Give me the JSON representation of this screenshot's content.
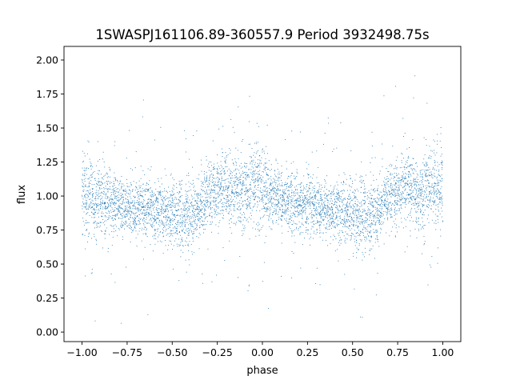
{
  "chart_data": {
    "type": "scatter",
    "title": "1SWASPJ161106.89-360557.9 Period 3932498.75s",
    "xlabel": "phase",
    "ylabel": "flux",
    "xlim": [
      -1.1,
      1.1
    ],
    "ylim": [
      -0.07,
      2.1
    ],
    "xticks": [
      {
        "value": -1.0,
        "label": "−1.00"
      },
      {
        "value": -0.75,
        "label": "−0.75"
      },
      {
        "value": -0.5,
        "label": "−0.50"
      },
      {
        "value": -0.25,
        "label": "−0.25"
      },
      {
        "value": 0.0,
        "label": "0.00"
      },
      {
        "value": 0.25,
        "label": "0.25"
      },
      {
        "value": 0.5,
        "label": "0.50"
      },
      {
        "value": 0.75,
        "label": "0.75"
      },
      {
        "value": 1.0,
        "label": "1.00"
      }
    ],
    "yticks": [
      {
        "value": 0.0,
        "label": "0.00"
      },
      {
        "value": 0.25,
        "label": "0.25"
      },
      {
        "value": 0.5,
        "label": "0.50"
      },
      {
        "value": 0.75,
        "label": "0.75"
      },
      {
        "value": 1.0,
        "label": "1.00"
      },
      {
        "value": 1.25,
        "label": "1.25"
      },
      {
        "value": 1.5,
        "label": "1.50"
      },
      {
        "value": 1.75,
        "label": "1.75"
      },
      {
        "value": 2.0,
        "label": "2.00"
      }
    ],
    "grid": false,
    "marker_color": "#1f77b4",
    "series": [
      {
        "x": [
          -0.99,
          -0.97,
          -0.95,
          -0.93,
          -0.91,
          -0.89,
          -0.87,
          -0.85,
          -0.83,
          -0.81,
          -0.79,
          -0.77,
          -0.75,
          -0.73,
          -0.71,
          -0.69,
          -0.67,
          -0.65,
          -0.63,
          -0.61,
          -0.59,
          -0.57,
          -0.55,
          -0.53,
          -0.51,
          -0.49,
          -0.47,
          -0.45,
          -0.43,
          -0.41,
          -0.39,
          -0.37,
          -0.35,
          -0.33,
          -0.31,
          -0.29,
          -0.27,
          -0.25,
          -0.23,
          -0.21,
          -0.19,
          -0.17,
          -0.15,
          -0.13,
          -0.11,
          -0.09,
          -0.07,
          -0.05,
          -0.03,
          -0.01,
          0.01,
          0.03,
          0.05,
          0.07,
          0.09,
          0.11,
          0.13,
          0.15,
          0.17,
          0.19,
          0.21,
          0.23,
          0.25,
          0.27,
          0.29,
          0.31,
          0.33,
          0.35,
          0.37,
          0.39,
          0.41,
          0.43,
          0.45,
          0.47,
          0.49,
          0.51,
          0.53,
          0.55,
          0.57,
          0.59,
          0.61,
          0.63,
          0.65,
          0.67,
          0.69,
          0.71,
          0.73,
          0.75,
          0.77,
          0.79,
          0.81,
          0.83,
          0.85,
          0.87,
          0.89,
          0.91,
          0.93,
          0.95,
          0.97,
          0.99
        ],
        "y": [
          1.06,
          1.02,
          1.0,
          0.97,
          0.98,
          0.96,
          0.95,
          0.95,
          0.93,
          0.95,
          0.92,
          0.93,
          0.9,
          0.92,
          0.9,
          0.92,
          0.91,
          0.9,
          0.91,
          0.9,
          0.89,
          0.9,
          0.88,
          0.88,
          0.87,
          0.88,
          0.86,
          0.86,
          0.85,
          0.86,
          0.88,
          0.9,
          0.92,
          0.95,
          0.98,
          1.0,
          1.03,
          1.04,
          1.05,
          1.06,
          1.05,
          1.04,
          1.02,
          1.01,
          1.04,
          1.05,
          1.06,
          1.07,
          1.06,
          1.06,
          1.05,
          1.03,
          1.01,
          1.0,
          0.98,
          0.97,
          0.96,
          0.96,
          0.95,
          0.94,
          0.94,
          0.93,
          0.93,
          0.92,
          0.91,
          0.92,
          0.9,
          0.91,
          0.9,
          0.9,
          0.89,
          0.9,
          0.88,
          0.88,
          0.87,
          0.87,
          0.86,
          0.86,
          0.85,
          0.86,
          0.88,
          0.9,
          0.92,
          0.95,
          0.98,
          1.0,
          1.02,
          1.04,
          1.05,
          1.06,
          1.05,
          1.04,
          1.02,
          1.01,
          1.03,
          1.05,
          1.06,
          1.07,
          1.06,
          1.06
        ],
        "spread": [
          0.3,
          0.25,
          0.22,
          0.22,
          0.2,
          0.2,
          0.22,
          0.2,
          0.22,
          0.2,
          0.18,
          0.2,
          0.18,
          0.2,
          0.18,
          0.18,
          0.2,
          0.2,
          0.18,
          0.18,
          0.2,
          0.22,
          0.2,
          0.2,
          0.22,
          0.22,
          0.24,
          0.26,
          0.26,
          0.24,
          0.22,
          0.2,
          0.2,
          0.2,
          0.2,
          0.22,
          0.22,
          0.24,
          0.24,
          0.22,
          0.24,
          0.25,
          0.22,
          0.22,
          0.25,
          0.26,
          0.26,
          0.25,
          0.28,
          0.3,
          0.28,
          0.25,
          0.22,
          0.22,
          0.2,
          0.2,
          0.22,
          0.2,
          0.22,
          0.2,
          0.18,
          0.2,
          0.2,
          0.2,
          0.18,
          0.18,
          0.2,
          0.2,
          0.18,
          0.18,
          0.2,
          0.22,
          0.2,
          0.2,
          0.22,
          0.22,
          0.24,
          0.26,
          0.26,
          0.24,
          0.22,
          0.2,
          0.2,
          0.2,
          0.2,
          0.22,
          0.22,
          0.24,
          0.24,
          0.22,
          0.24,
          0.25,
          0.22,
          0.22,
          0.25,
          0.26,
          0.26,
          0.25,
          0.28,
          0.3
        ]
      }
    ]
  }
}
